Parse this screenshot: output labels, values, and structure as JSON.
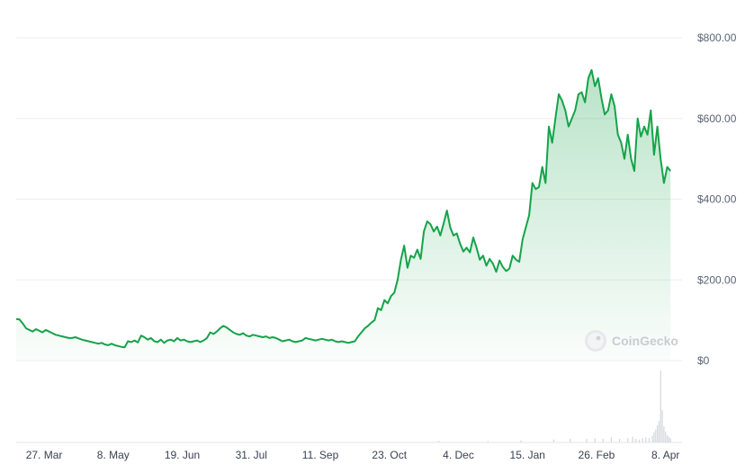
{
  "chart_data": {
    "type": "area",
    "colors": {
      "line": "#16a34a",
      "fill_top": "#16a34a",
      "volume": "#d4d7dc",
      "grid": "#eceef1"
    },
    "watermark": {
      "text": "CoinGecko",
      "icon": "gecko-logo-icon"
    },
    "y_ticks": [
      {
        "value": 0,
        "label": "$0"
      },
      {
        "value": 200,
        "label": "$200.00"
      },
      {
        "value": 400,
        "label": "$400.00"
      },
      {
        "value": 600,
        "label": "$600.00"
      },
      {
        "value": 800,
        "label": "$800.00"
      }
    ],
    "ylim": [
      0,
      800
    ],
    "x_ticks": [
      {
        "day": 10,
        "label": "27. Mar"
      },
      {
        "day": 52,
        "label": "8. May"
      },
      {
        "day": 94,
        "label": "19. Jun"
      },
      {
        "day": 136,
        "label": "31. Jul"
      },
      {
        "day": 178,
        "label": "11. Sep"
      },
      {
        "day": 220,
        "label": "23. Oct"
      },
      {
        "day": 262,
        "label": "4. Dec"
      },
      {
        "day": 304,
        "label": "15. Jan"
      },
      {
        "day": 346,
        "label": "26. Feb"
      },
      {
        "day": 388,
        "label": "8. Apr"
      }
    ],
    "xlim": [
      -7,
      398
    ],
    "series": [
      {
        "points": [
          [
            -7,
            103
          ],
          [
            -5,
            102
          ],
          [
            -3,
            92
          ],
          [
            -1,
            80
          ],
          [
            1,
            76
          ],
          [
            3,
            72
          ],
          [
            5,
            78
          ],
          [
            7,
            74
          ],
          [
            9,
            70
          ],
          [
            11,
            76
          ],
          [
            13,
            72
          ],
          [
            15,
            68
          ],
          [
            17,
            64
          ],
          [
            19,
            62
          ],
          [
            21,
            60
          ],
          [
            23,
            58
          ],
          [
            25,
            56
          ],
          [
            27,
            56
          ],
          [
            29,
            58
          ],
          [
            31,
            55
          ],
          [
            33,
            52
          ],
          [
            35,
            50
          ],
          [
            37,
            48
          ],
          [
            39,
            46
          ],
          [
            41,
            44
          ],
          [
            43,
            42
          ],
          [
            45,
            44
          ],
          [
            47,
            40
          ],
          [
            49,
            38
          ],
          [
            51,
            42
          ],
          [
            53,
            38
          ],
          [
            55,
            36
          ],
          [
            57,
            34
          ],
          [
            59,
            33
          ],
          [
            61,
            48
          ],
          [
            63,
            46
          ],
          [
            65,
            50
          ],
          [
            67,
            45
          ],
          [
            69,
            62
          ],
          [
            71,
            58
          ],
          [
            73,
            52
          ],
          [
            75,
            56
          ],
          [
            77,
            48
          ],
          [
            79,
            46
          ],
          [
            81,
            52
          ],
          [
            83,
            44
          ],
          [
            85,
            50
          ],
          [
            87,
            52
          ],
          [
            89,
            48
          ],
          [
            91,
            56
          ],
          [
            93,
            50
          ],
          [
            95,
            52
          ],
          [
            97,
            48
          ],
          [
            99,
            46
          ],
          [
            101,
            48
          ],
          [
            103,
            50
          ],
          [
            105,
            46
          ],
          [
            107,
            50
          ],
          [
            109,
            56
          ],
          [
            111,
            70
          ],
          [
            113,
            66
          ],
          [
            115,
            72
          ],
          [
            117,
            80
          ],
          [
            119,
            86
          ],
          [
            121,
            82
          ],
          [
            123,
            76
          ],
          [
            125,
            70
          ],
          [
            127,
            66
          ],
          [
            129,
            64
          ],
          [
            131,
            68
          ],
          [
            133,
            62
          ],
          [
            135,
            60
          ],
          [
            137,
            64
          ],
          [
            139,
            62
          ],
          [
            141,
            60
          ],
          [
            143,
            58
          ],
          [
            145,
            60
          ],
          [
            147,
            56
          ],
          [
            149,
            58
          ],
          [
            151,
            56
          ],
          [
            153,
            52
          ],
          [
            155,
            48
          ],
          [
            157,
            50
          ],
          [
            159,
            52
          ],
          [
            161,
            48
          ],
          [
            163,
            46
          ],
          [
            165,
            48
          ],
          [
            167,
            50
          ],
          [
            169,
            56
          ],
          [
            171,
            54
          ],
          [
            173,
            52
          ],
          [
            175,
            50
          ],
          [
            177,
            52
          ],
          [
            179,
            54
          ],
          [
            181,
            52
          ],
          [
            183,
            50
          ],
          [
            185,
            52
          ],
          [
            187,
            48
          ],
          [
            189,
            46
          ],
          [
            191,
            48
          ],
          [
            193,
            46
          ],
          [
            195,
            44
          ],
          [
            197,
            46
          ],
          [
            199,
            48
          ],
          [
            201,
            60
          ],
          [
            203,
            70
          ],
          [
            205,
            80
          ],
          [
            207,
            86
          ],
          [
            209,
            94
          ],
          [
            211,
            100
          ],
          [
            213,
            130
          ],
          [
            215,
            125
          ],
          [
            217,
            150
          ],
          [
            219,
            142
          ],
          [
            221,
            160
          ],
          [
            223,
            168
          ],
          [
            225,
            200
          ],
          [
            227,
            250
          ],
          [
            229,
            285
          ],
          [
            231,
            230
          ],
          [
            233,
            260
          ],
          [
            235,
            255
          ],
          [
            237,
            275
          ],
          [
            239,
            252
          ],
          [
            241,
            320
          ],
          [
            243,
            345
          ],
          [
            245,
            338
          ],
          [
            247,
            320
          ],
          [
            249,
            332
          ],
          [
            251,
            310
          ],
          [
            253,
            340
          ],
          [
            255,
            372
          ],
          [
            257,
            330
          ],
          [
            259,
            310
          ],
          [
            261,
            315
          ],
          [
            263,
            290
          ],
          [
            265,
            270
          ],
          [
            267,
            280
          ],
          [
            269,
            268
          ],
          [
            271,
            305
          ],
          [
            273,
            280
          ],
          [
            275,
            250
          ],
          [
            277,
            260
          ],
          [
            279,
            235
          ],
          [
            281,
            252
          ],
          [
            283,
            240
          ],
          [
            285,
            220
          ],
          [
            287,
            248
          ],
          [
            289,
            232
          ],
          [
            291,
            222
          ],
          [
            293,
            228
          ],
          [
            295,
            260
          ],
          [
            297,
            250
          ],
          [
            299,
            245
          ],
          [
            301,
            300
          ],
          [
            303,
            330
          ],
          [
            305,
            360
          ],
          [
            307,
            440
          ],
          [
            309,
            425
          ],
          [
            311,
            430
          ],
          [
            313,
            480
          ],
          [
            315,
            440
          ],
          [
            317,
            580
          ],
          [
            319,
            540
          ],
          [
            321,
            600
          ],
          [
            323,
            660
          ],
          [
            325,
            645
          ],
          [
            327,
            620
          ],
          [
            329,
            580
          ],
          [
            331,
            600
          ],
          [
            333,
            620
          ],
          [
            335,
            660
          ],
          [
            337,
            665
          ],
          [
            339,
            640
          ],
          [
            341,
            700
          ],
          [
            343,
            720
          ],
          [
            345,
            680
          ],
          [
            347,
            700
          ],
          [
            349,
            650
          ],
          [
            351,
            610
          ],
          [
            353,
            620
          ],
          [
            355,
            660
          ],
          [
            357,
            630
          ],
          [
            359,
            560
          ],
          [
            361,
            540
          ],
          [
            363,
            500
          ],
          [
            365,
            560
          ],
          [
            367,
            500
          ],
          [
            369,
            470
          ],
          [
            371,
            600
          ],
          [
            373,
            555
          ],
          [
            375,
            580
          ],
          [
            377,
            560
          ],
          [
            379,
            620
          ],
          [
            381,
            510
          ],
          [
            383,
            580
          ],
          [
            385,
            500
          ],
          [
            387,
            440
          ],
          [
            389,
            480
          ],
          [
            391,
            470
          ]
        ]
      }
    ],
    "volume": [
      [
        250,
        2
      ],
      [
        280,
        2
      ],
      [
        300,
        3
      ],
      [
        320,
        4
      ],
      [
        330,
        5
      ],
      [
        340,
        5
      ],
      [
        345,
        6
      ],
      [
        350,
        5
      ],
      [
        355,
        7
      ],
      [
        360,
        5
      ],
      [
        365,
        6
      ],
      [
        368,
        8
      ],
      [
        370,
        5
      ],
      [
        372,
        4
      ],
      [
        374,
        6
      ],
      [
        376,
        7
      ],
      [
        378,
        6
      ],
      [
        380,
        9
      ],
      [
        381,
        14
      ],
      [
        382,
        18
      ],
      [
        383,
        24
      ],
      [
        384,
        30
      ],
      [
        385,
        100
      ],
      [
        386,
        45
      ],
      [
        387,
        22
      ],
      [
        388,
        15
      ],
      [
        389,
        10
      ],
      [
        390,
        8
      ],
      [
        391,
        6
      ]
    ]
  }
}
